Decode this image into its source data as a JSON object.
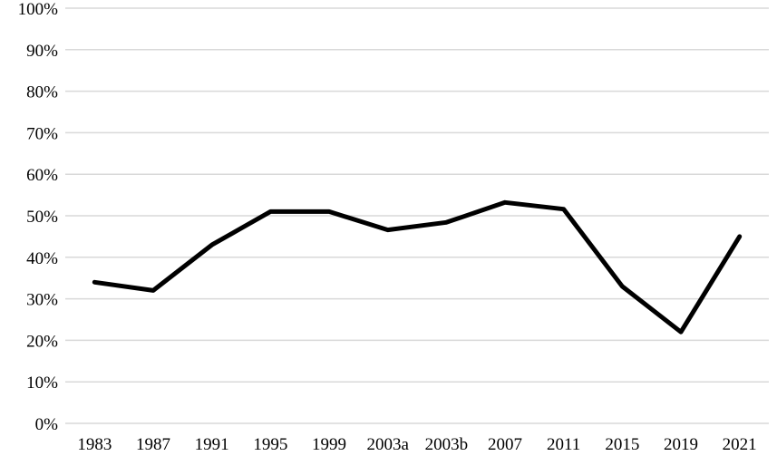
{
  "chart_data": {
    "type": "line",
    "categories": [
      "1983",
      "1987",
      "1991",
      "1995",
      "1999",
      "2003a",
      "2003b",
      "2007",
      "2011",
      "2015",
      "2019",
      "2021"
    ],
    "series": [
      {
        "values": [
          34,
          32,
          43,
          51,
          51,
          46.6,
          48.4,
          53.2,
          51.6,
          33,
          22,
          45
        ]
      }
    ],
    "y_ticks": [
      "0%",
      "10%",
      "20%",
      "30%",
      "40%",
      "50%",
      "60%",
      "70%",
      "80%",
      "90%",
      "100%"
    ],
    "ylim": [
      0,
      100
    ],
    "grid": true,
    "legend": "none",
    "line_color": "#000000",
    "grid_color": "#d9d9d9"
  }
}
